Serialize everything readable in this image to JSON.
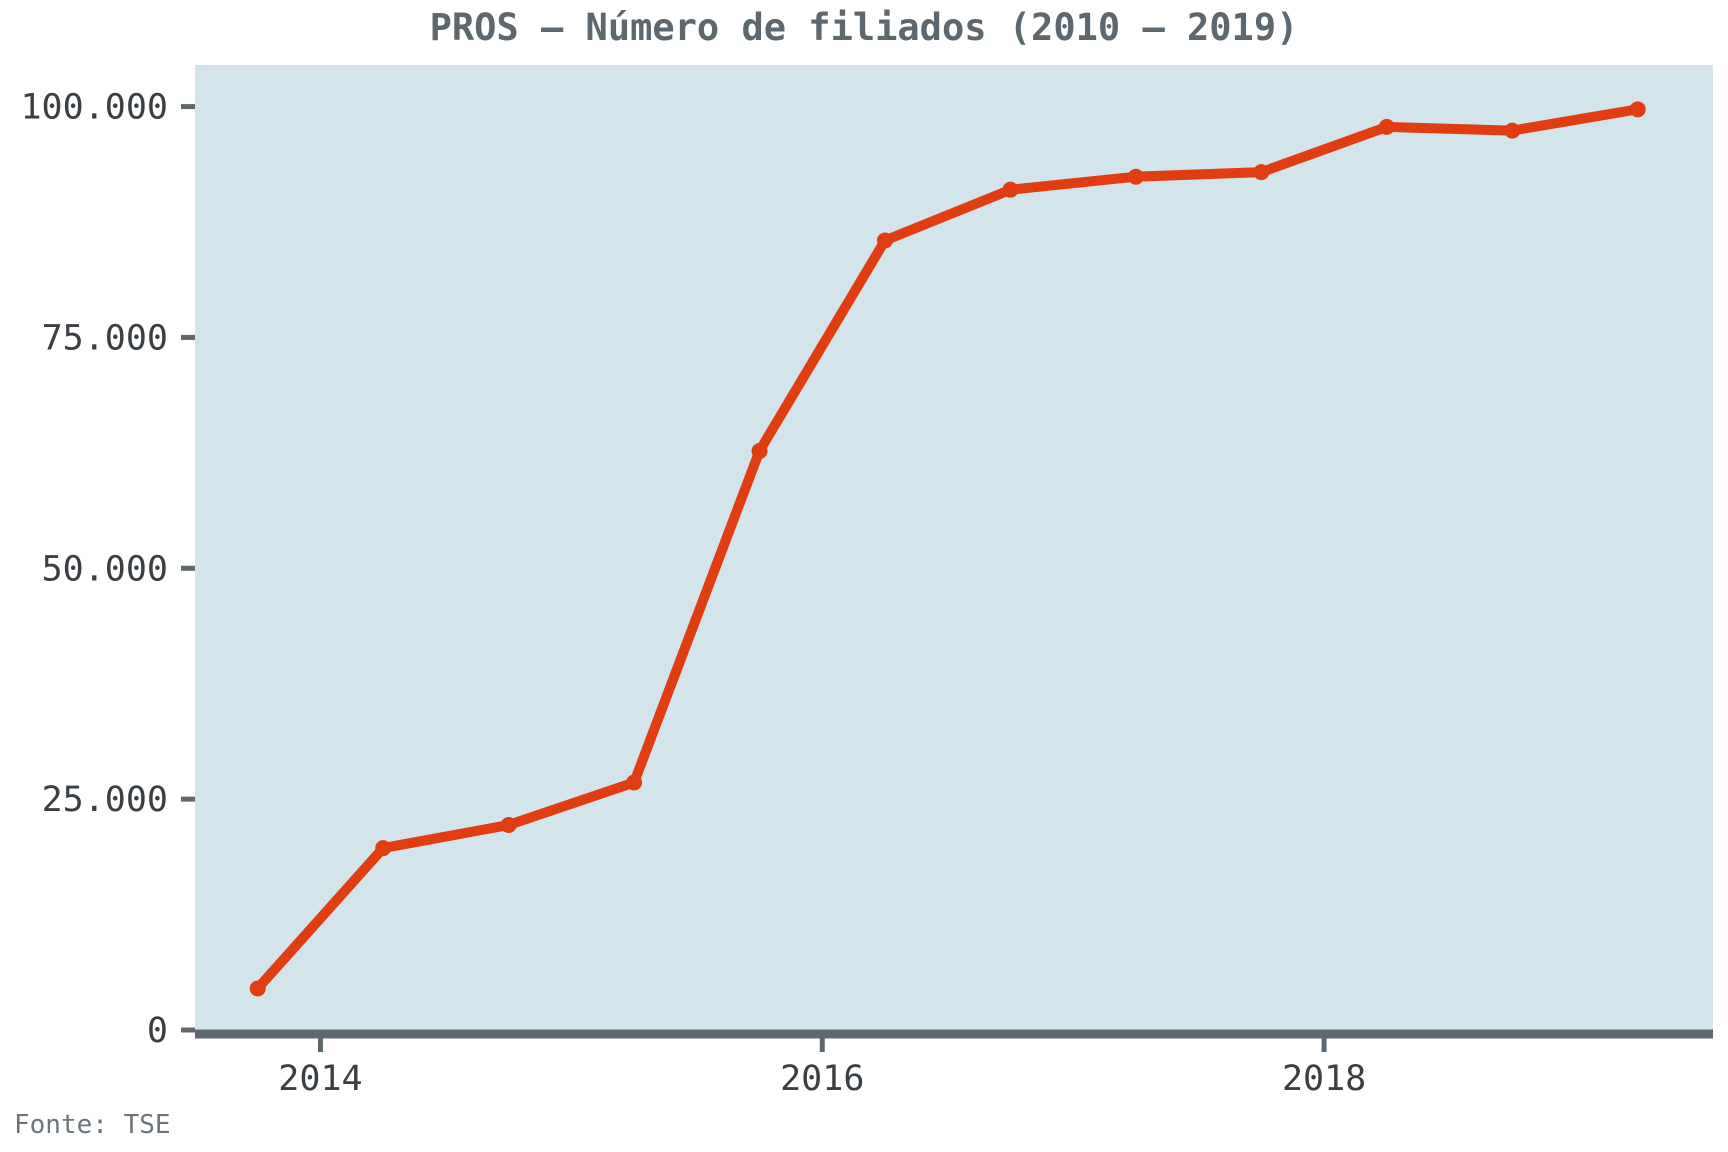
{
  "chart_data": {
    "type": "line",
    "title": "PROS – Número de filiados (2010 – 2019)",
    "xlabel": "",
    "ylabel": "",
    "source": "Fonte: TSE",
    "x_ticks": [
      "2014",
      "2016",
      "2018"
    ],
    "y_ticks": [
      "0",
      "25.000",
      "50.000",
      "75.000",
      "100.000"
    ],
    "xlim": [
      2013.5,
      2019.55
    ],
    "ylim": [
      0,
      104500
    ],
    "grid": false,
    "legend": "none",
    "series": [
      {
        "x": [
          2013.75,
          2014.25,
          2014.75,
          2015.25,
          2015.75,
          2016.25,
          2016.75,
          2017.25,
          2017.75,
          2018.25,
          2018.75,
          2019.25
        ],
        "values": [
          4500,
          19700,
          22200,
          26800,
          62700,
          85500,
          91000,
          92400,
          92900,
          97800,
          97400,
          99700
        ]
      }
    ],
    "colors": {
      "line": "#e03e10",
      "plot_background": "#d4e4eb",
      "axis": "#5d676e",
      "title": "#5d676e"
    }
  }
}
